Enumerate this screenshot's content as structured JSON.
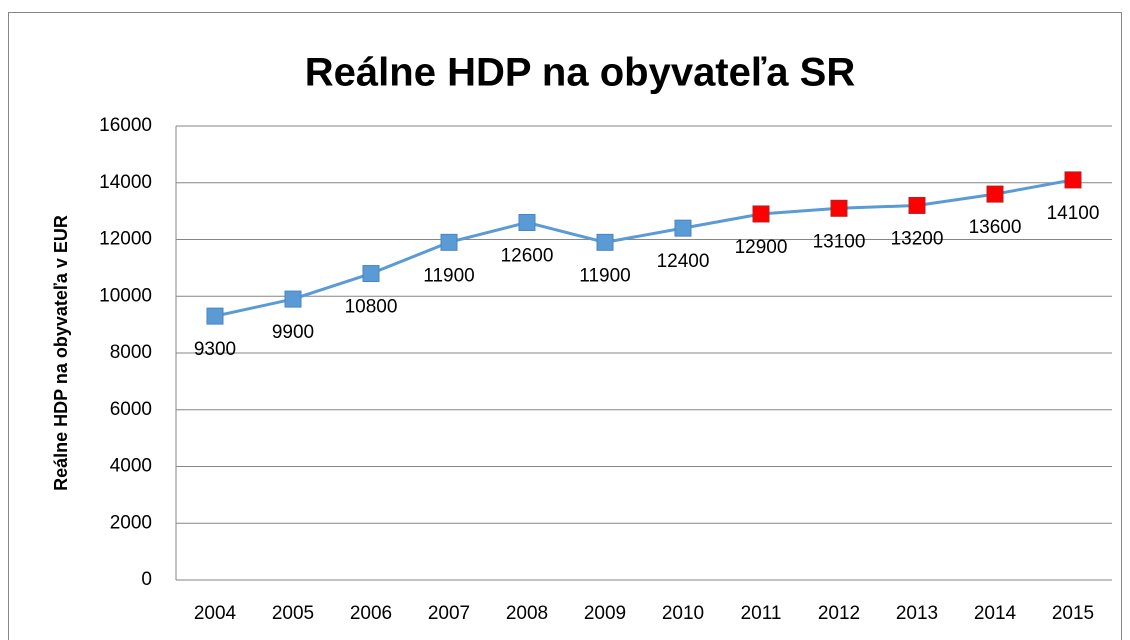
{
  "chart_data": {
    "type": "line",
    "title": "Reálne HDP na obyvateľa SR",
    "y_label": "Reálne HDP na obyvateľa v EUR",
    "categories": [
      "2004",
      "2005",
      "2006",
      "2007",
      "2008",
      "2009",
      "2010",
      "2011",
      "2012",
      "2013",
      "2014",
      "2015"
    ],
    "values": [
      9300,
      9900,
      10800,
      11900,
      12600,
      11900,
      12400,
      12900,
      13100,
      13200,
      13600,
      14100
    ],
    "color": "#5b9bd5",
    "marker_colors": [
      "#5b9bd5",
      "#5b9bd5",
      "#5b9bd5",
      "#5b9bd5",
      "#5b9bd5",
      "#5b9bd5",
      "#5b9bd5",
      "#ff0000",
      "#ff0000",
      "#ff0000",
      "#ff0000",
      "#ff0000"
    ],
    "ylim": [
      0,
      16000
    ],
    "yticks": [
      0,
      2000,
      4000,
      6000,
      8000,
      10000,
      12000,
      14000,
      16000
    ],
    "grid": true
  }
}
